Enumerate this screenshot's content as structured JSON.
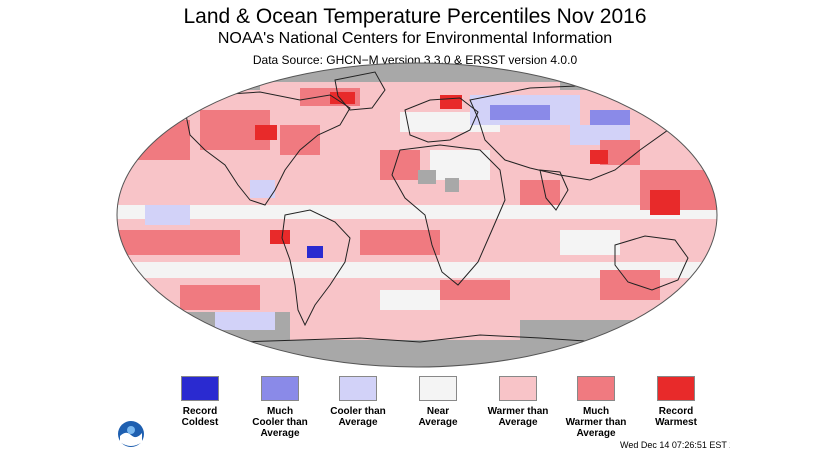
{
  "header": {
    "title": "Land & Ocean Temperature Percentiles Nov 2016",
    "subtitle": "NOAA's National Centers for Environmental Information",
    "source": "Data Source: GHCN−M version 3.3.0 & ERSST version 4.0.0"
  },
  "colors": {
    "record_coldest": "#2a2ad0",
    "much_cooler": "#8a8ae8",
    "cooler": "#d2d2f8",
    "near": "#f4f4f4",
    "warmer": "#f8c4c8",
    "much_warmer": "#f07a80",
    "record_warmest": "#e82a2a",
    "no_data": "#a8a8a8"
  },
  "legend": [
    {
      "label": "Record\nColdest",
      "color": "#2a2ad0"
    },
    {
      "label": "Much\nCooler than\nAverage",
      "color": "#8a8ae8"
    },
    {
      "label": "Cooler than\nAverage",
      "color": "#d2d2f8"
    },
    {
      "label": "Near\nAverage",
      "color": "#f4f4f4"
    },
    {
      "label": "Warmer than\nAverage",
      "color": "#f8c4c8"
    },
    {
      "label": "Much\nWarmer than\nAverage",
      "color": "#f07a80"
    },
    {
      "label": "Record\nWarmest",
      "color": "#e82a2a"
    }
  ],
  "timestamp": "Wed Dec 14 07:26:51 EST 2016",
  "logo": {
    "icon": "noaa-logo-icon",
    "text": "NOAA"
  }
}
